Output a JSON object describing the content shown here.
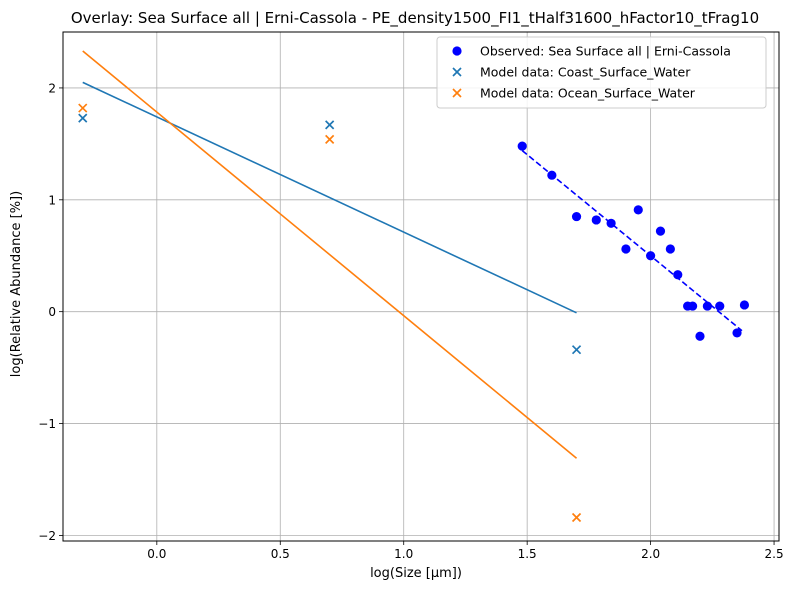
{
  "chart_data": {
    "type": "scatter",
    "title": "Overlay: Sea Surface all | Erni-Cassola - PE_density1500_FI1_tHalf31600_hFactor10_tFrag10",
    "xlabel": "log(Size [μm])",
    "ylabel": "log(Relative Abundance [%])",
    "xlim": [
      -0.38,
      2.52
    ],
    "ylim": [
      -2.05,
      2.5
    ],
    "xticks": [
      0.0,
      0.5,
      1.0,
      1.5,
      2.0,
      2.5
    ],
    "xtick_labels": [
      "0.0",
      "0.5",
      "1.0",
      "1.5",
      "2.0",
      "2.5"
    ],
    "yticks": [
      -2,
      -1,
      0,
      1,
      2
    ],
    "ytick_labels": [
      "−2",
      "−1",
      "0",
      "1",
      "2"
    ],
    "grid": true,
    "legend_placement": "top-right",
    "colors": {
      "observed": "#0000ff",
      "coast": "#1f77b4",
      "ocean": "#ff7f0e",
      "grid": "#b0b0b0"
    },
    "series": [
      {
        "name": "Observed: Sea Surface all | Erni-Cassola",
        "kind": "scatter",
        "marker": "circle",
        "color": "#0000ff",
        "x": [
          1.48,
          1.6,
          1.7,
          1.78,
          1.84,
          1.9,
          1.95,
          2.0,
          2.04,
          2.08,
          2.11,
          2.15,
          2.17,
          2.2,
          2.23,
          2.28,
          2.35,
          2.38
        ],
        "y": [
          1.48,
          1.22,
          0.85,
          0.82,
          0.79,
          0.56,
          0.91,
          0.5,
          0.72,
          0.56,
          0.33,
          0.05,
          0.05,
          -0.22,
          0.05,
          0.05,
          -0.19,
          0.06
        ]
      },
      {
        "name": "Observed fit",
        "kind": "line",
        "style": "dashed",
        "color": "#0000ff",
        "x": [
          1.48,
          2.37
        ],
        "y": [
          1.44,
          -0.17
        ]
      },
      {
        "name": "Model data: Coast_Surface_Water",
        "kind": "scatter",
        "marker": "x",
        "color": "#1f77b4",
        "x": [
          -0.3,
          0.7,
          1.7
        ],
        "y": [
          1.73,
          1.67,
          -0.34
        ]
      },
      {
        "name": "Model data: Ocean_Surface_Water",
        "kind": "scatter",
        "marker": "x",
        "color": "#ff7f0e",
        "x": [
          -0.3,
          0.7,
          1.7
        ],
        "y": [
          1.82,
          1.54,
          -1.84
        ]
      },
      {
        "name": "Coast fit",
        "kind": "line",
        "style": "solid",
        "color": "#1f77b4",
        "x": [
          -0.3,
          1.7
        ],
        "y": [
          2.05,
          -0.01
        ]
      },
      {
        "name": "Ocean fit",
        "kind": "line",
        "style": "solid",
        "color": "#ff7f0e",
        "x": [
          -0.3,
          1.7
        ],
        "y": [
          2.33,
          -1.31
        ]
      }
    ],
    "legend": [
      {
        "label": "Observed: Sea Surface all | Erni-Cassola",
        "marker": "circle",
        "color": "#0000ff"
      },
      {
        "label": "Model data: Coast_Surface_Water",
        "marker": "x",
        "color": "#1f77b4"
      },
      {
        "label": "Model data: Ocean_Surface_Water",
        "marker": "x",
        "color": "#ff7f0e"
      }
    ]
  }
}
